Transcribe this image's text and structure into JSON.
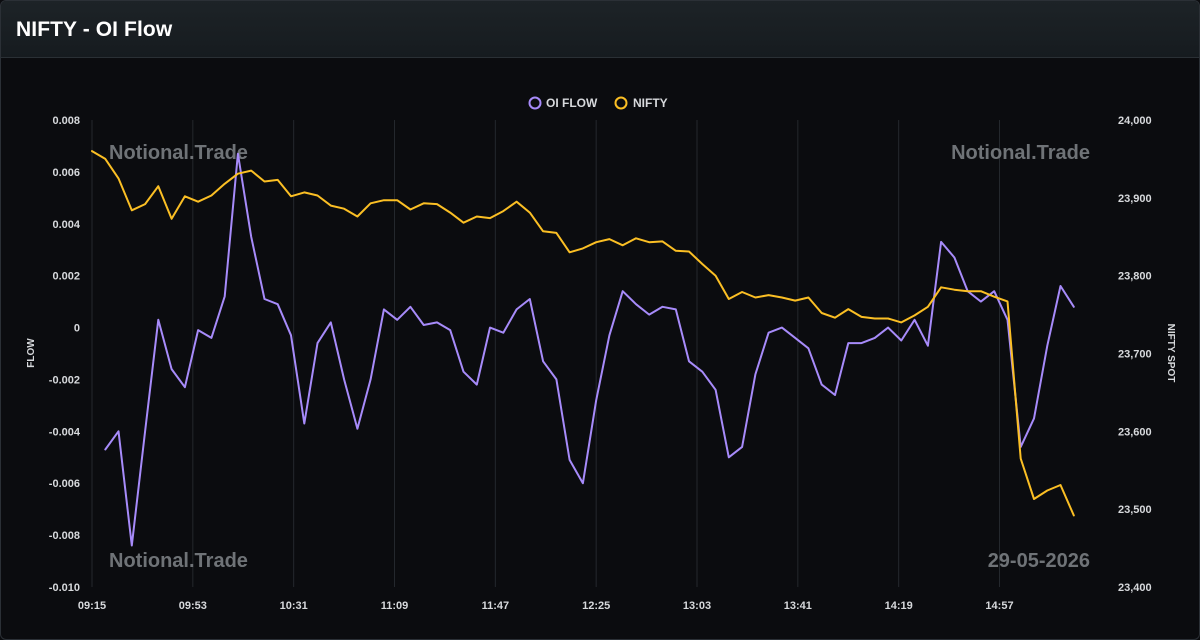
{
  "header": {
    "title": "NIFTY - OI Flow"
  },
  "watermarks": {
    "top_left": "Notional.Trade",
    "top_right": "Notional.Trade",
    "bottom_left": "Notional.Trade",
    "date": "29-05-2026"
  },
  "colors": {
    "background": "#0b0c0f",
    "oi_flow": "#a78bfa",
    "nifty": "#fbbf24",
    "grid": "#24282d"
  },
  "chart_data": {
    "type": "line",
    "x_ticks": [
      "09:15",
      "09:53",
      "10:31",
      "11:09",
      "11:47",
      "12:25",
      "13:03",
      "13:41",
      "14:19",
      "14:57"
    ],
    "ylabel": "FLOW",
    "y2label": "NIFTY SPOT",
    "ylim": [
      -0.01,
      0.008
    ],
    "y_ticks": [
      "0.008",
      "0.006",
      "0.004",
      "0.002",
      "0",
      "-0.002",
      "-0.004",
      "-0.006",
      "-0.008",
      "-0.010"
    ],
    "y2lim": [
      23400,
      24000
    ],
    "y2_ticks": [
      "24,000",
      "23,900",
      "23,800",
      "23,700",
      "23,600",
      "23,500",
      "23,400"
    ],
    "grid": "vertical",
    "legend": "top-center",
    "series": [
      {
        "name": "OI FLOW",
        "axis": "left",
        "color": "#a78bfa",
        "start_time": "09:20",
        "values": [
          -0.0047,
          -0.004,
          -0.0084,
          -0.004,
          0.0003,
          -0.0016,
          -0.0023,
          -0.0001,
          -0.0004,
          0.0012,
          0.0067,
          0.0035,
          0.0011,
          0.0009,
          -0.0003,
          -0.0037,
          -0.0006,
          0.0002,
          -0.002,
          -0.0039,
          -0.002,
          0.0007,
          0.0003,
          0.0008,
          0.0001,
          0.0002,
          -0.0001,
          -0.0017,
          -0.0022,
          0.0,
          -0.0002,
          0.0007,
          0.0011,
          -0.0013,
          -0.002,
          -0.0051,
          -0.006,
          -0.0028,
          -0.0003,
          0.0014,
          0.0009,
          0.0005,
          0.0008,
          0.0007,
          -0.0013,
          -0.0017,
          -0.0024,
          -0.005,
          -0.0046,
          -0.0018,
          -0.0002,
          0.0,
          -0.0004,
          -0.0008,
          -0.0022,
          -0.0026,
          -0.0006,
          -0.0006,
          -0.0004,
          0.0,
          -0.0005,
          0.0003,
          -0.0007,
          0.0033,
          0.0027,
          0.0014,
          0.001,
          0.0014,
          0.0003,
          -0.0046,
          -0.0035,
          -0.0007,
          0.0016,
          0.0008
        ]
      },
      {
        "name": "NIFTY",
        "axis": "right",
        "color": "#fbbf24",
        "start_time": "09:15",
        "values": [
          23960,
          23950,
          23925,
          23884,
          23892,
          23915,
          23873,
          23902,
          23895,
          23903,
          23918,
          23931,
          23935,
          23921,
          23923,
          23902,
          23907,
          23903,
          23890,
          23886,
          23876,
          23893,
          23897,
          23897,
          23885,
          23893,
          23892,
          23881,
          23868,
          23876,
          23874,
          23883,
          23895,
          23881,
          23857,
          23855,
          23830,
          23835,
          23843,
          23847,
          23839,
          23848,
          23843,
          23844,
          23832,
          23831,
          23815,
          23800,
          23770,
          23779,
          23772,
          23775,
          23772,
          23768,
          23772,
          23752,
          23746,
          23757,
          23747,
          23745,
          23745,
          23740,
          23749,
          23760,
          23785,
          23782,
          23780,
          23780,
          23773,
          23767,
          23565,
          23513,
          23524,
          23531,
          23492
        ]
      }
    ]
  }
}
